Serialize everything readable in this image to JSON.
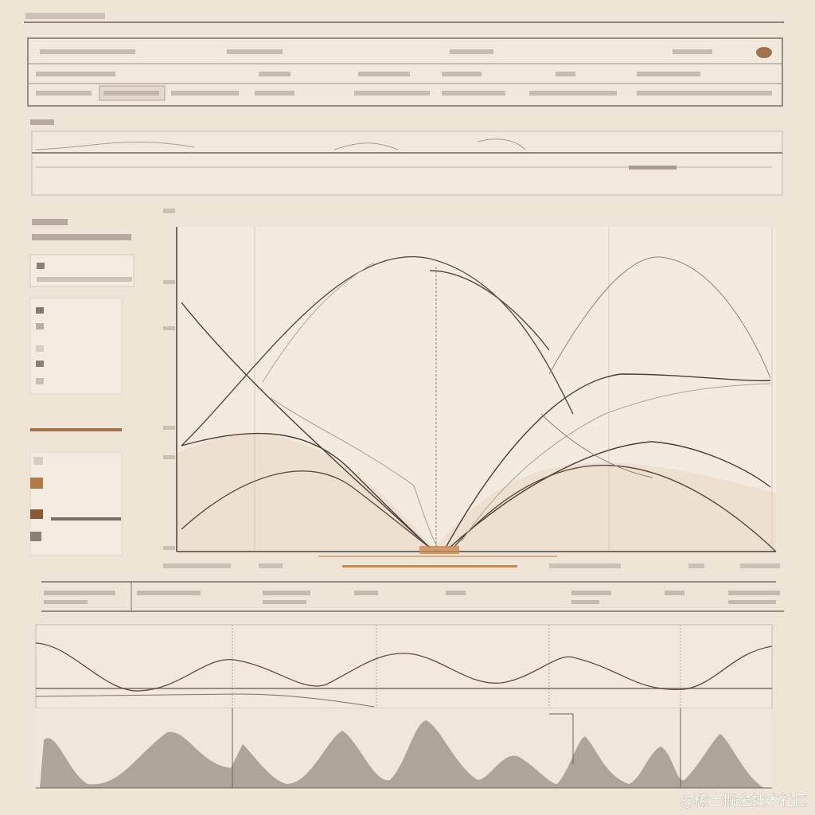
{
  "watermark": "@稀土掘金技术社区"
}
